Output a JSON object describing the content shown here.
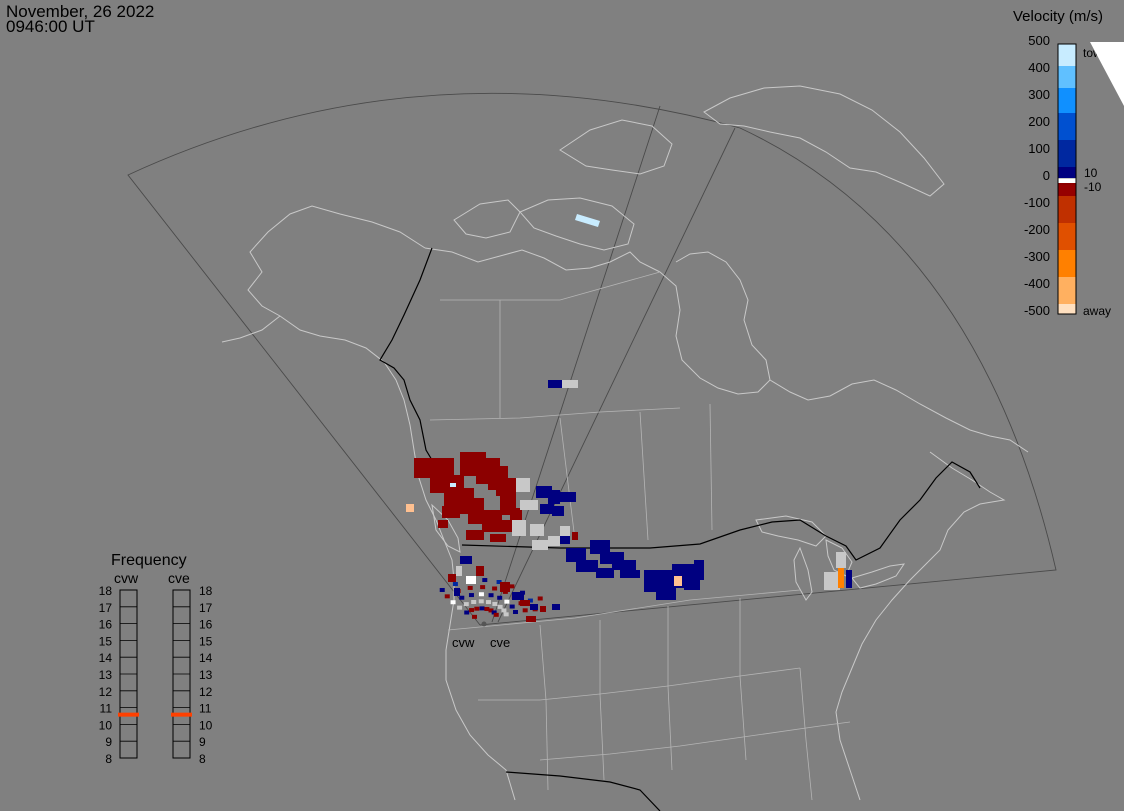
{
  "header": {
    "date": "November, 26 2022",
    "time": "0946:00 UT"
  },
  "velocity_scale": {
    "title": "Velocity (m/s)",
    "ticks": [
      "500",
      "400",
      "300",
      "200",
      "100",
      "0",
      "-100",
      "-200",
      "-300",
      "-400",
      "-500"
    ],
    "inner_labels": [
      "10",
      "-10"
    ],
    "end_labels": {
      "top": "toward",
      "bottom": "away"
    },
    "colors": [
      "#ffe0c0",
      "#ffb060",
      "#ff8000",
      "#e05000",
      "#c03000",
      "#960000",
      "#8c0000",
      "#ffffff",
      "#c8c8c8",
      "#000080",
      "#0028a0",
      "#0050d0",
      "#1090ff",
      "#60c0ff",
      "#c8ecff"
    ]
  },
  "frequency_panel": {
    "title": "Frequency",
    "radars": [
      "cvw",
      "cve"
    ],
    "freq_labels": [
      "18",
      "17",
      "16",
      "15",
      "14",
      "13",
      "12",
      "11",
      "10",
      "9",
      "8"
    ],
    "active_mhz": {
      "cvw": 11,
      "cve": 11
    },
    "active_color": "#ff4000"
  },
  "radar_sites": [
    "cvw",
    "cve"
  ],
  "map_colors": {
    "background": "#808080",
    "coastline": "#c8c8c8",
    "state_lines": "#b4b4b4",
    "national_border": "#000000",
    "field_of_view": "#4a4a4a"
  }
}
